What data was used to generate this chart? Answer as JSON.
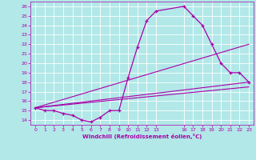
{
  "xlabel": "Windchill (Refroidissement éolien,°C)",
  "bg_color": "#b2e8e8",
  "line_color": "#aa00aa",
  "xlim": [
    -0.5,
    23.5
  ],
  "ylim": [
    13.5,
    26.5
  ],
  "xticks": [
    0,
    1,
    2,
    3,
    4,
    5,
    6,
    7,
    8,
    9,
    10,
    11,
    12,
    13,
    16,
    17,
    18,
    19,
    20,
    21,
    22,
    23
  ],
  "yticks": [
    14,
    15,
    16,
    17,
    18,
    19,
    20,
    21,
    22,
    23,
    24,
    25,
    26
  ],
  "curve1_x": [
    0,
    1,
    2,
    3,
    4,
    5,
    6,
    7,
    8,
    9,
    10,
    11,
    12,
    13,
    16,
    17,
    18,
    19,
    20,
    21,
    22,
    23
  ],
  "curve1_y": [
    15.3,
    15.0,
    15.0,
    14.7,
    14.5,
    14.0,
    13.8,
    14.3,
    15.0,
    15.0,
    18.5,
    21.7,
    24.5,
    25.5,
    26.0,
    25.0,
    24.0,
    22.0,
    20.0,
    19.0,
    19.0,
    18.0
  ],
  "line2_x": [
    0,
    23
  ],
  "line2_y": [
    15.3,
    22.0
  ],
  "line3_x": [
    0,
    23
  ],
  "line3_y": [
    15.3,
    18.0
  ],
  "line4_x": [
    0,
    23
  ],
  "line4_y": [
    15.3,
    17.5
  ],
  "figsize": [
    3.2,
    2.0
  ],
  "dpi": 100
}
